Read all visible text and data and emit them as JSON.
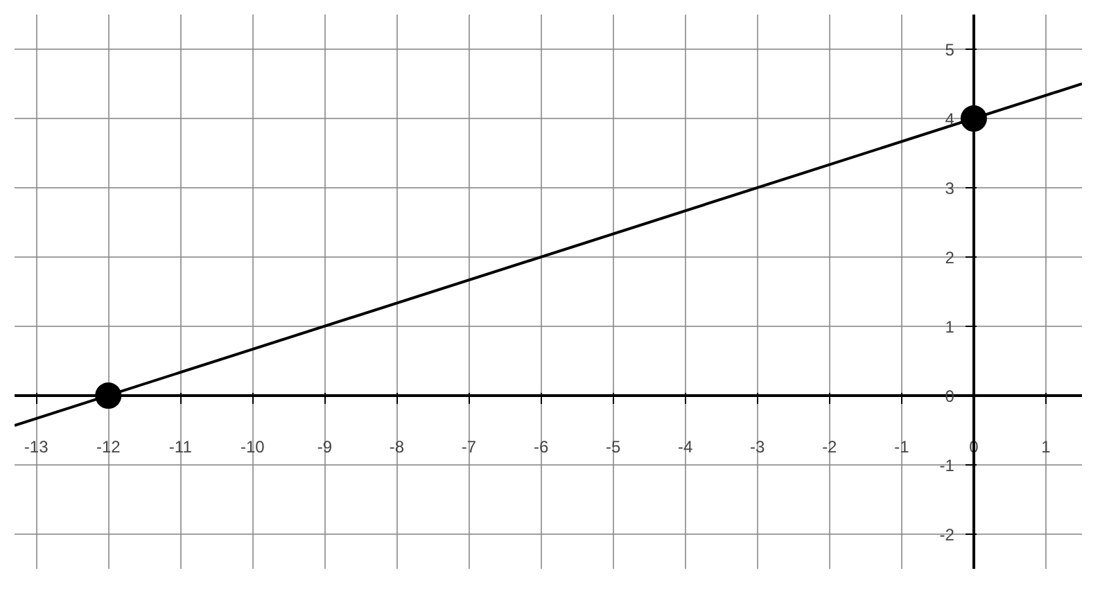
{
  "chart_data": {
    "type": "line",
    "xlim": [
      -13.3,
      1.5
    ],
    "ylim": [
      -2.5,
      5.5
    ],
    "xticks": [
      -13,
      -12,
      -11,
      -10,
      -9,
      -8,
      -7,
      -6,
      -5,
      -4,
      -3,
      -2,
      -1,
      0,
      1
    ],
    "yticks": [
      -2,
      -1,
      0,
      1,
      2,
      3,
      4,
      5
    ],
    "grid": true,
    "series": [
      {
        "color": "#000000",
        "x": [
          -13.3,
          1.5
        ],
        "values": [
          -0.43,
          4.5
        ],
        "marker": "none"
      },
      {
        "type": "scatter",
        "color": "#000000",
        "x": [
          -12,
          0
        ],
        "values": [
          0,
          4
        ],
        "marker": "circle"
      }
    ]
  }
}
